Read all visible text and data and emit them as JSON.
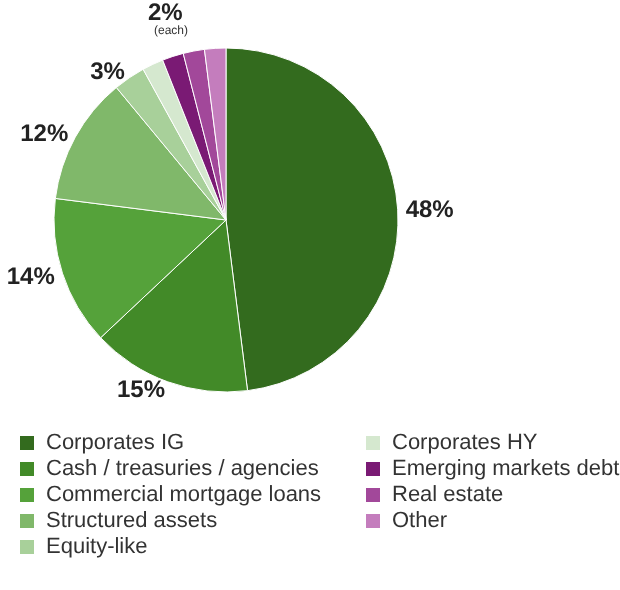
{
  "chart_data": {
    "type": "pie",
    "categories": [
      "Corporates IG",
      "Cash / treasuries / agencies",
      "Commercial mortgage loans",
      "Structured assets",
      "Equity-like",
      "Corporates HY",
      "Emerging markets debt",
      "Real estate",
      "Other"
    ],
    "values": [
      48,
      15,
      14,
      12,
      3,
      2,
      2,
      2,
      2
    ],
    "colors": [
      "#336b1e",
      "#428a28",
      "#55a23a",
      "#80b86a",
      "#a8d09a",
      "#d5e8cf",
      "#7a1a74",
      "#a2489a",
      "#c47dbd"
    ],
    "value_labels": [
      "48%",
      "15%",
      "14%",
      "12%",
      "3%",
      null,
      null,
      null,
      null
    ],
    "annotations": [
      "2%",
      "(each)"
    ],
    "legend": "bottom"
  }
}
